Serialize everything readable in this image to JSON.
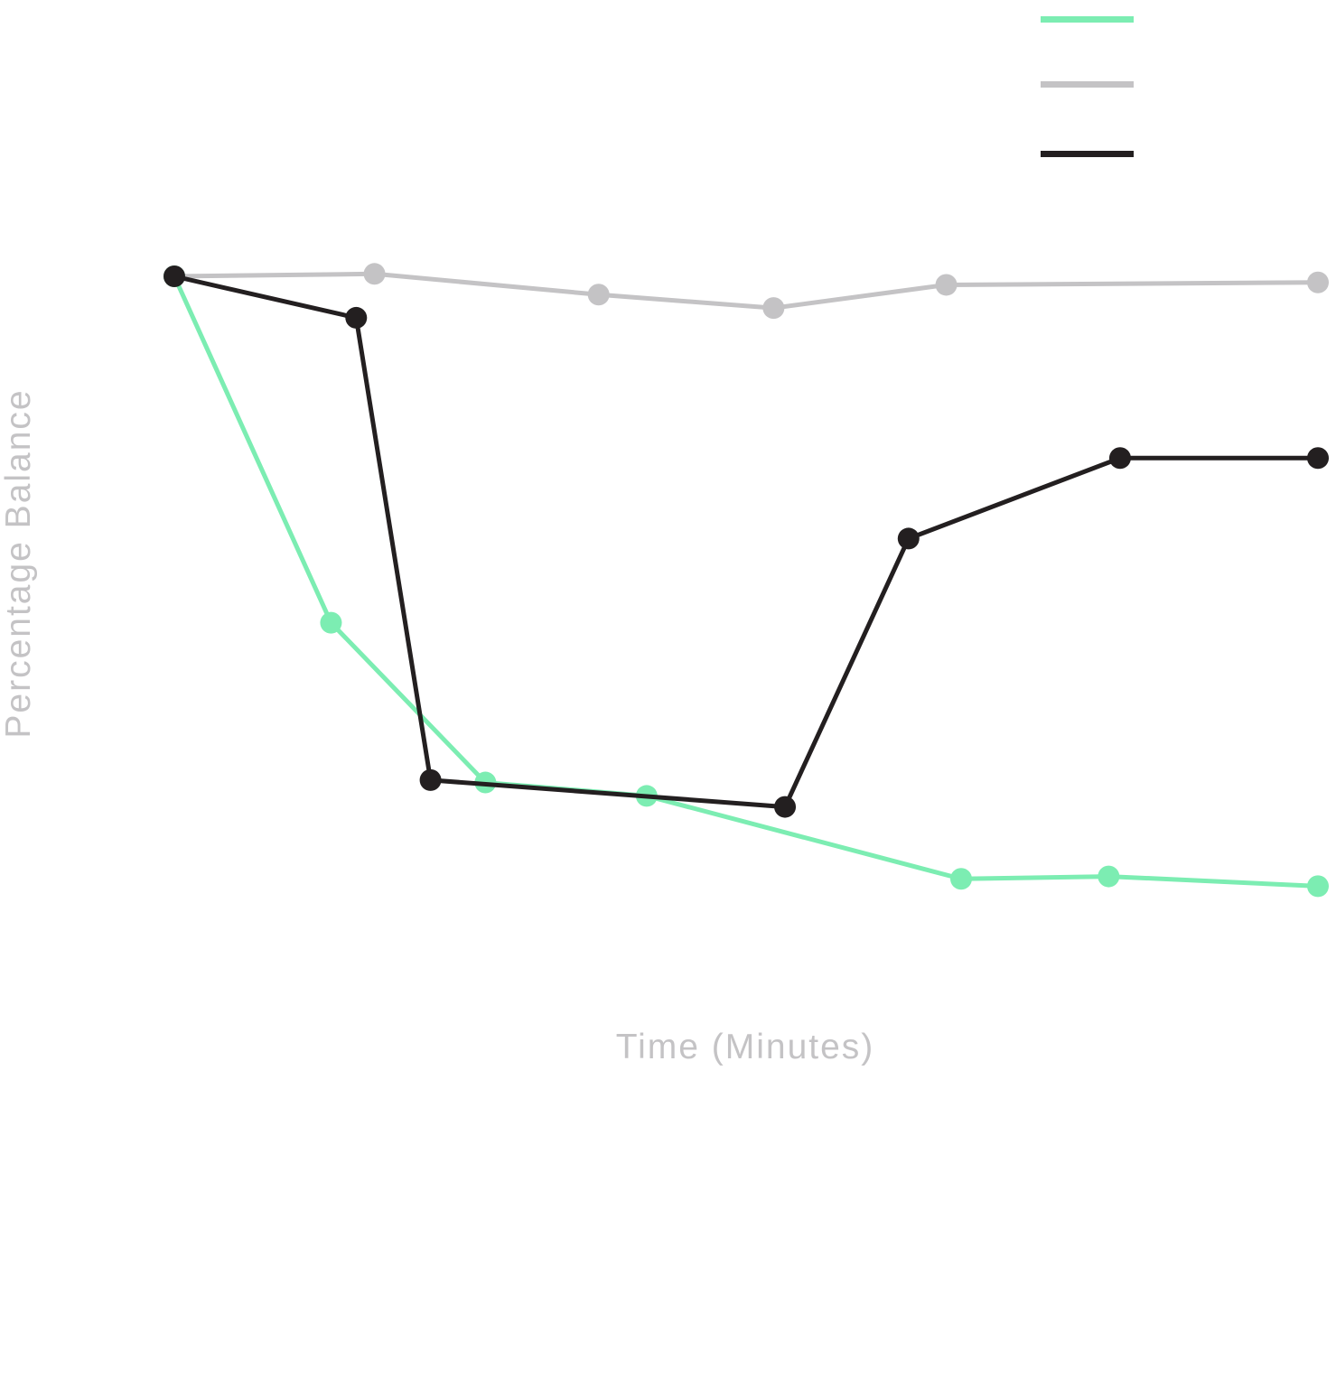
{
  "chart_data": {
    "type": "line",
    "xlabel": "Time (Minutes)",
    "ylabel": "Percentage Balance",
    "xlim": [
      0,
      100
    ],
    "ylim": [
      0,
      100
    ],
    "grid": false,
    "legend": {
      "placement": "top-right",
      "entries_without_text": 3
    },
    "series": [
      {
        "color": "#7cedb2",
        "points": [
          [
            0,
            95.6
          ],
          [
            13.7,
            67.2
          ],
          [
            27.2,
            54.1
          ],
          [
            41.3,
            53
          ],
          [
            68.8,
            46.2
          ],
          [
            81.7,
            46.4
          ],
          [
            100,
            45.6
          ]
        ]
      },
      {
        "color": "#c4c3c5",
        "points": [
          [
            0,
            95.6
          ],
          [
            17.5,
            95.8
          ],
          [
            37.1,
            94.1
          ],
          [
            52.4,
            93
          ],
          [
            67.5,
            94.9
          ],
          [
            100,
            95.1
          ]
        ]
      },
      {
        "color": "#231f20",
        "points": [
          [
            0,
            95.6
          ],
          [
            15.9,
            92.2
          ],
          [
            22.4,
            54.3
          ],
          [
            53.4,
            52.1
          ],
          [
            64.2,
            74.1
          ],
          [
            82.7,
            80.7
          ],
          [
            100,
            80.7
          ]
        ]
      }
    ]
  }
}
